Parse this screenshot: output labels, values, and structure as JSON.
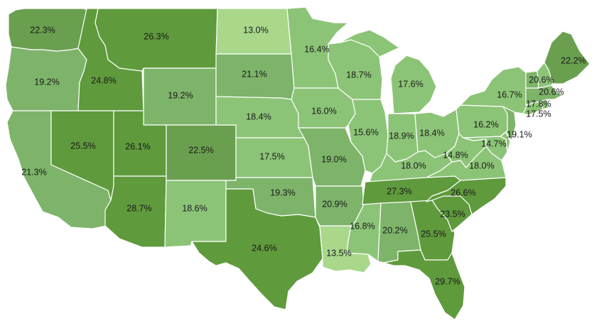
{
  "palette": {
    "band_1": "#a9d88b",
    "band_2": "#8cc477",
    "band_3": "#7db46a",
    "band_4": "#6a9f4f",
    "band_5": "#5f9a3c",
    "background": "#ffffff",
    "border": "#ffffff"
  },
  "states": [
    {
      "id": "WA",
      "value": "22.3%"
    },
    {
      "id": "OR",
      "value": "19.2%"
    },
    {
      "id": "CA",
      "value": "21.3%"
    },
    {
      "id": "ID",
      "value": "24.8%"
    },
    {
      "id": "NV",
      "value": "25.5%"
    },
    {
      "id": "MT",
      "value": "26.3%"
    },
    {
      "id": "WY",
      "value": "19.2%"
    },
    {
      "id": "UT",
      "value": "26.1%"
    },
    {
      "id": "AZ",
      "value": "28.7%"
    },
    {
      "id": "CO",
      "value": "22.5%"
    },
    {
      "id": "NM",
      "value": "18.6%"
    },
    {
      "id": "ND",
      "value": "13.0%"
    },
    {
      "id": "SD",
      "value": "21.1%"
    },
    {
      "id": "NE",
      "value": "18.4%"
    },
    {
      "id": "KS",
      "value": "17.5%"
    },
    {
      "id": "OK",
      "value": "19.3%"
    },
    {
      "id": "TX",
      "value": "24.6%"
    },
    {
      "id": "MN",
      "value": "16.4%"
    },
    {
      "id": "IA",
      "value": "16.0%"
    },
    {
      "id": "MO",
      "value": "19.0%"
    },
    {
      "id": "AR",
      "value": "20.9%"
    },
    {
      "id": "LA",
      "value": "13.5%"
    },
    {
      "id": "WI",
      "value": "18.7%"
    },
    {
      "id": "IL",
      "value": "15.6%"
    },
    {
      "id": "MI",
      "value": "17.6%"
    },
    {
      "id": "IN",
      "value": "18.9%"
    },
    {
      "id": "OH",
      "value": "18.4%"
    },
    {
      "id": "KY",
      "value": "18.0%"
    },
    {
      "id": "TN",
      "value": "27.3%"
    },
    {
      "id": "MS",
      "value": "16.8%"
    },
    {
      "id": "AL",
      "value": "20.2%"
    },
    {
      "id": "GA",
      "value": "25.5%"
    },
    {
      "id": "FL",
      "value": "29.7%"
    },
    {
      "id": "SC",
      "value": "23.5%"
    },
    {
      "id": "NC",
      "value": "26.6%"
    },
    {
      "id": "VA",
      "value": "18.0%"
    },
    {
      "id": "WV",
      "value": "14.8%"
    },
    {
      "id": "MD",
      "value": "14.7%"
    },
    {
      "id": "DE",
      "value": ""
    },
    {
      "id": "PA",
      "value": "16.2%"
    },
    {
      "id": "NJ",
      "value": "19.1%"
    },
    {
      "id": "NY",
      "value": "16.7%"
    },
    {
      "id": "CT",
      "value": "17.5%"
    },
    {
      "id": "RI",
      "value": "17.8%"
    },
    {
      "id": "MA",
      "value": "20.6%"
    },
    {
      "id": "VT",
      "value": "20.6%"
    },
    {
      "id": "NH",
      "value": ""
    },
    {
      "id": "ME",
      "value": "22.2%"
    }
  ]
}
